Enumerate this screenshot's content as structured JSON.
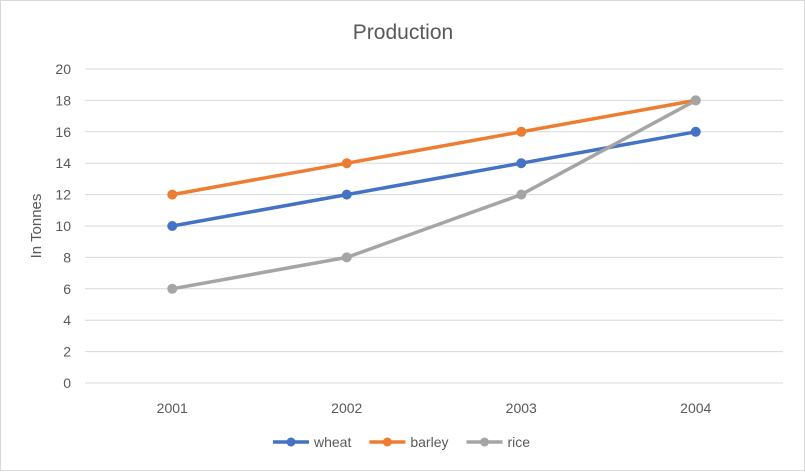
{
  "chart_data": {
    "type": "line",
    "title": "Production",
    "xlabel": "",
    "ylabel": "In Tonnes",
    "categories": [
      "2001",
      "2002",
      "2003",
      "2004"
    ],
    "ylim": [
      0,
      20
    ],
    "yticks": [
      0,
      2,
      4,
      6,
      8,
      10,
      12,
      14,
      16,
      18,
      20
    ],
    "grid": true,
    "legend_position": "bottom",
    "series": [
      {
        "name": "wheat",
        "color": "#4472C4",
        "values": [
          10,
          12,
          14,
          16
        ]
      },
      {
        "name": "barley",
        "color": "#ED7D31",
        "values": [
          12,
          14,
          16,
          18
        ]
      },
      {
        "name": "rice",
        "color": "#A5A5A5",
        "values": [
          6,
          8,
          12,
          18
        ]
      }
    ]
  }
}
